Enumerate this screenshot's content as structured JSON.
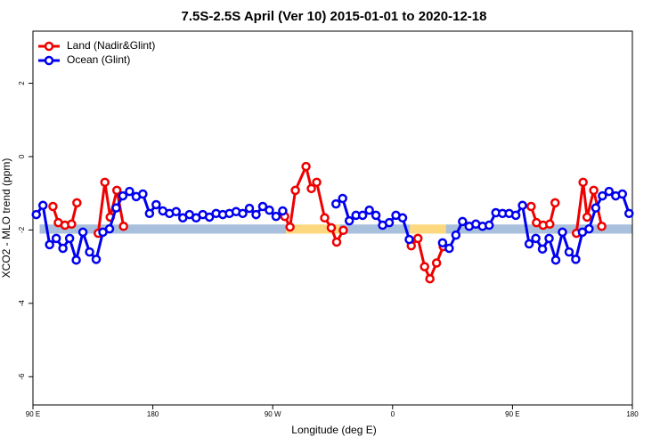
{
  "chart_data": {
    "type": "line",
    "title": "7.5S-2.5S April (Ver 10)   2015-01-01 to 2020-12-18",
    "x_label": "Longitude (deg E)",
    "y_label": "XCO2 - MLO trend (ppm)",
    "xlim": [
      90,
      540
    ],
    "ylim": [
      -6.77,
      3.42
    ],
    "xticks": [
      {
        "value": 90,
        "label": "90 E"
      },
      180,
      {
        "value": 270,
        "label": "90 W"
      },
      {
        "value": 360,
        "label": "0"
      },
      {
        "value": 450,
        "label": "90 E"
      },
      {
        "value": 540,
        "label": "180"
      }
    ],
    "yticks": [
      -6,
      -4,
      -2,
      0,
      2
    ],
    "legend": "top-left",
    "bands": {
      "y": [
        -2.1,
        -1.85
      ],
      "segments": [
        {
          "x": [
            95,
            280
          ],
          "color": "#a9c0dd"
        },
        {
          "x": [
            280,
            320
          ],
          "color": "#fdd87f"
        },
        {
          "x": [
            320,
            373
          ],
          "color": "#a9c0dd"
        },
        {
          "x": [
            373,
            400
          ],
          "color": "#fdd87f"
        },
        {
          "x": [
            400,
            540
          ],
          "color": "#a9c0dd"
        }
      ]
    },
    "series": [
      {
        "name": "Land (Nadir&Glint)",
        "color": "#ee0000",
        "x": [
          105,
          109,
          114,
          119,
          123,
          null,
          139,
          144,
          148,
          153,
          158,
          null,
          279,
          283,
          287,
          295,
          299,
          303,
          309,
          314,
          318,
          323,
          null,
          374,
          379,
          384,
          388,
          393,
          398,
          null,
          464,
          468,
          473,
          478,
          482,
          null,
          498,
          503,
          506,
          511,
          517
        ],
        "values": [
          -1.36,
          -1.8,
          -1.87,
          -1.84,
          -1.26,
          null,
          -2.09,
          -0.7,
          -1.65,
          -0.92,
          -1.9,
          null,
          -1.63,
          -1.92,
          -0.92,
          -0.27,
          -0.87,
          -0.7,
          -1.67,
          -1.94,
          -2.33,
          -2.01,
          null,
          -2.43,
          -2.23,
          -3.0,
          -3.33,
          -2.9,
          -2.45,
          null,
          -1.36,
          -1.8,
          -1.87,
          -1.84,
          -1.26,
          null,
          -2.09,
          -0.7,
          -1.65,
          -0.92,
          -1.9
        ]
      },
      {
        "name": "Ocean (Glint)",
        "color": "#0000ee",
        "x": [
          92.5,
          97.5,
          102.5,
          107.5,
          112.5,
          117.5,
          122.5,
          127.5,
          132.5,
          137.5,
          142.5,
          147.5,
          152.5,
          157.5,
          162.5,
          167.5,
          172.5,
          177.5,
          182.5,
          187.5,
          192.5,
          197.5,
          202.5,
          207.5,
          212.5,
          217.5,
          222.5,
          227.5,
          232.5,
          237.5,
          242.5,
          247.5,
          252.5,
          257.5,
          262.5,
          267.5,
          272.5,
          277.5,
          282.5,
          287.5,
          292.5,
          297.5,
          302.5,
          307.5,
          312.5,
          317.5,
          322.5,
          327.5,
          332.5,
          337.5,
          342.5,
          347.5,
          352.5,
          357.5,
          362.5,
          367.5,
          372.5,
          377.5,
          382.5,
          387.5,
          392.5,
          397.5,
          402.5,
          407.5,
          412.5,
          417.5,
          422.5,
          427.5,
          432.5,
          437.5,
          442.5,
          447.5,
          452.5,
          457.5,
          462.5,
          467.5,
          472.5,
          477.5,
          482.5,
          487.5,
          492.5,
          497.5,
          502.5,
          507.5,
          512.5,
          517.5,
          522.5,
          527.5,
          532.5,
          537.5
        ],
        "values": [
          -1.58,
          -1.33,
          -2.4,
          -2.23,
          -2.5,
          -2.23,
          -2.82,
          -2.06,
          -2.6,
          -2.8,
          -2.06,
          -1.97,
          -1.4,
          -1.07,
          -0.95,
          -1.09,
          -1.02,
          -1.55,
          -1.31,
          -1.48,
          -1.55,
          -1.5,
          -1.67,
          -1.58,
          -1.67,
          -1.58,
          -1.65,
          -1.55,
          -1.58,
          -1.55,
          -1.5,
          -1.55,
          -1.41,
          -1.58,
          -1.36,
          -1.46,
          -1.63,
          -1.48,
          null,
          null,
          null,
          null,
          null,
          null,
          null,
          -1.29,
          -1.14,
          -1.75,
          -1.6,
          -1.6,
          -1.46,
          -1.6,
          -1.87,
          -1.8,
          -1.6,
          -1.67,
          -2.26,
          null,
          null,
          null,
          null,
          -2.35,
          -2.5,
          -2.14,
          -1.77,
          -1.9,
          -1.84,
          -1.9,
          -1.87,
          -1.53,
          -1.55,
          -1.55,
          -1.6,
          -1.33,
          -2.38,
          -2.23,
          -2.52,
          -2.23,
          -2.82,
          -2.06,
          -2.6,
          -2.8,
          -2.06,
          -1.97,
          -1.4,
          -1.07,
          -0.95,
          -1.07,
          -1.02,
          -1.55
        ]
      }
    ]
  }
}
